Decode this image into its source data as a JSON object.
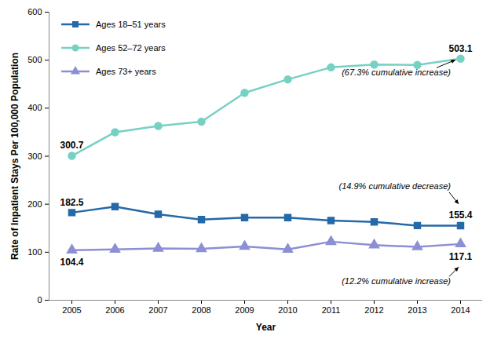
{
  "chart_data": {
    "type": "line",
    "x": [
      2005,
      2006,
      2007,
      2008,
      2009,
      2010,
      2011,
      2012,
      2013,
      2014
    ],
    "xlabel": "Year",
    "ylabel": "Rate of Inpatient Stays Per 100,000 Population",
    "ylim": [
      0,
      600
    ],
    "yticks": [
      0,
      100,
      200,
      300,
      400,
      500,
      600
    ],
    "grid": false,
    "legend": "top-left",
    "series": [
      {
        "name": "Ages 18–51 years",
        "color": "#2469a8",
        "marker": "square",
        "values": [
          182.5,
          195,
          179,
          168,
          172,
          172,
          166,
          163,
          155.5,
          155.4
        ],
        "value_labels": [
          "182.5",
          null,
          null,
          null,
          null,
          null,
          null,
          null,
          null,
          "155.4"
        ]
      },
      {
        "name": "Ages 52–72 years",
        "color": "#77d1c3",
        "marker": "circle",
        "values": [
          300.7,
          350,
          363,
          372,
          432,
          460,
          485,
          491,
          490,
          503.1
        ],
        "value_labels": [
          "300.7",
          null,
          null,
          null,
          null,
          null,
          null,
          null,
          null,
          "503.1"
        ]
      },
      {
        "name": "Ages 73+ years",
        "color": "#8c8fd4",
        "marker": "triangle",
        "values": [
          104.4,
          106,
          108,
          107,
          112,
          106,
          122,
          115,
          111,
          117.1
        ],
        "value_labels": [
          "104.4",
          null,
          null,
          null,
          null,
          null,
          null,
          null,
          null,
          "117.1"
        ]
      }
    ],
    "annotations": [
      {
        "series": "Ages 52–72 years",
        "text": "(67.3% cumulative increase)"
      },
      {
        "series": "Ages 18–51 years",
        "text": "(14.9% cumulative decrease)"
      },
      {
        "series": "Ages 73+ years",
        "text": "(12.2% cumulative increase)"
      }
    ]
  }
}
